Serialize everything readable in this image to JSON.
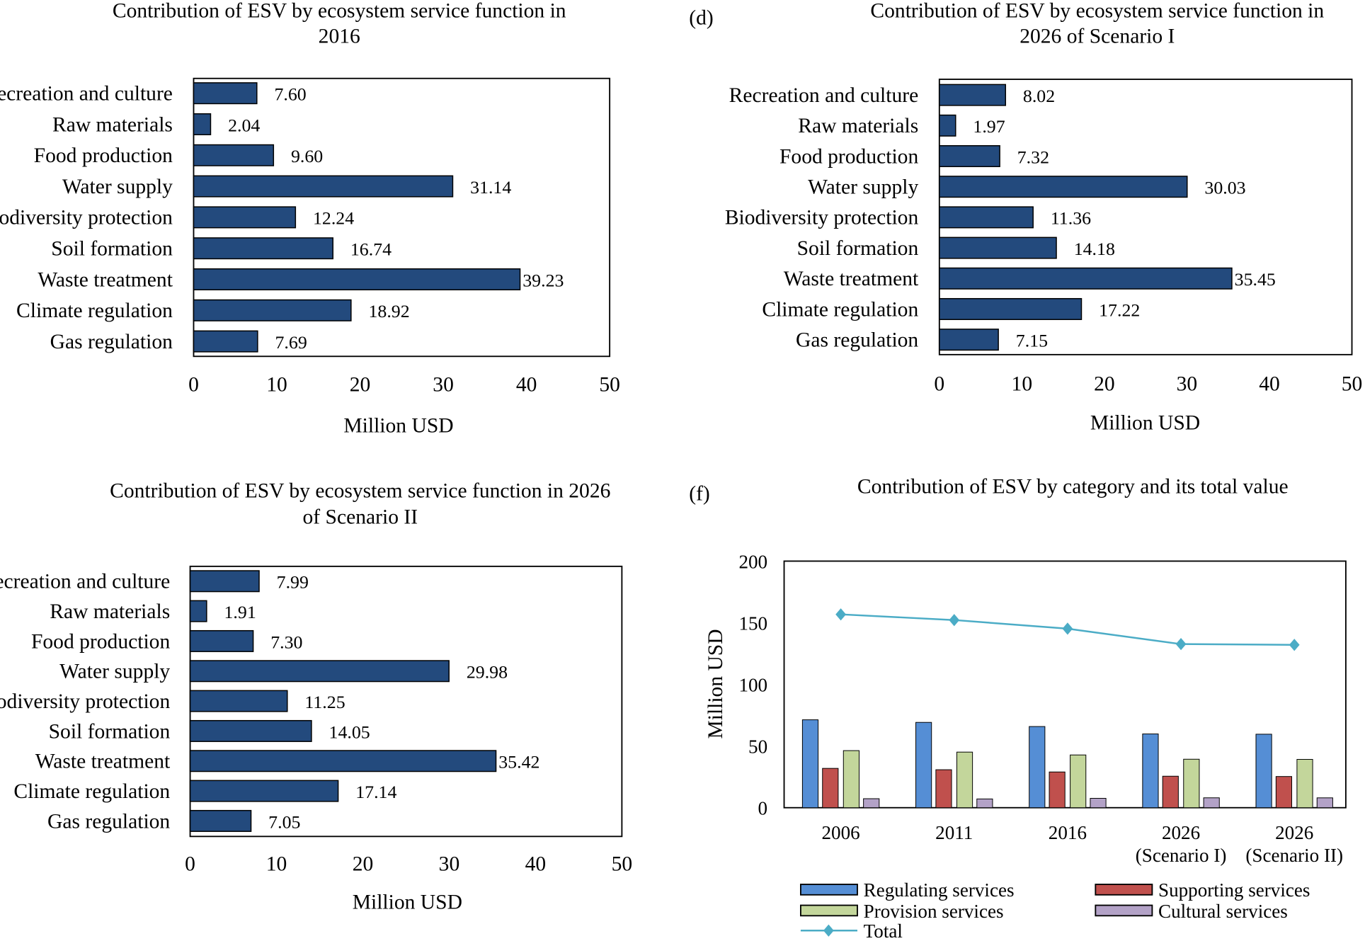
{
  "panel_labels": {
    "d": "(d)",
    "f": "(f)"
  },
  "chart_data": [
    {
      "type": "bar",
      "orientation": "horizontal",
      "title": [
        "Contribution of ESV by ecosystem service function in",
        "2016"
      ],
      "xlabel": "Million USD",
      "xlim": [
        0,
        50
      ],
      "xticks": [
        "0",
        "10",
        "20",
        "30",
        "40",
        "50"
      ],
      "categories": [
        "Recreation and culture",
        "Raw materials",
        "Food production",
        "Water supply",
        "Biodiversity protection",
        "Soil formation",
        "Waste treatment",
        "Climate regulation",
        "Gas regulation"
      ],
      "values": [
        7.6,
        2.04,
        9.6,
        31.14,
        12.24,
        16.74,
        39.23,
        18.92,
        7.69
      ],
      "value_labels": [
        "7.60",
        "2.04",
        "9.60",
        "31.14",
        "12.24",
        "16.74",
        "39.23",
        "18.92",
        "7.69"
      ],
      "bar_color": "#234a7d",
      "grid": false
    },
    {
      "type": "bar",
      "orientation": "horizontal",
      "title": [
        "Contribution of ESV by ecosystem service function in",
        "2026 of Scenario I"
      ],
      "xlabel": "Million USD",
      "xlim": [
        0,
        50
      ],
      "xticks": [
        "0",
        "10",
        "20",
        "30",
        "40",
        "50"
      ],
      "categories": [
        "Recreation and culture",
        "Raw materials",
        "Food production",
        "Water supply",
        "Biodiversity protection",
        "Soil formation",
        "Waste treatment",
        "Climate regulation",
        "Gas regulation"
      ],
      "values": [
        8.02,
        1.97,
        7.32,
        30.03,
        11.36,
        14.18,
        35.45,
        17.22,
        7.15
      ],
      "value_labels": [
        "8.02",
        "1.97",
        "7.32",
        "30.03",
        "11.36",
        "14.18",
        "35.45",
        "17.22",
        "7.15"
      ],
      "bar_color": "#234a7d",
      "grid": false
    },
    {
      "type": "bar",
      "orientation": "horizontal",
      "title": [
        "Contribution of ESV by ecosystem service function in 2026",
        "of Scenario II"
      ],
      "xlabel": "Million USD",
      "xlim": [
        0,
        50
      ],
      "xticks": [
        "0",
        "10",
        "20",
        "30",
        "40",
        "50"
      ],
      "categories": [
        "Recreation and culture",
        "Raw materials",
        "Food production",
        "Water supply",
        "Biodiversity protection",
        "Soil formation",
        "Waste treatment",
        "Climate regulation",
        "Gas regulation"
      ],
      "values": [
        7.99,
        1.91,
        7.3,
        29.98,
        11.25,
        14.05,
        35.42,
        17.14,
        7.05
      ],
      "value_labels": [
        "7.99",
        "1.91",
        "7.30",
        "29.98",
        "11.25",
        "14.05",
        "35.42",
        "17.14",
        "7.05"
      ],
      "bar_color": "#234a7d",
      "grid": false
    },
    {
      "type": "bar+line",
      "title": [
        "Contribution of ESV by category and its total value"
      ],
      "ylabel": "Million USD",
      "ylim": [
        0,
        200
      ],
      "yticks": [
        "0",
        "50",
        "100",
        "150",
        "200"
      ],
      "categories": [
        [
          "2006"
        ],
        [
          "2011"
        ],
        [
          "2016"
        ],
        [
          "2026",
          "(Scenario I)"
        ],
        [
          "2026",
          "(Scenario II)"
        ]
      ],
      "series": [
        {
          "name": "Regulating services",
          "type": "bar",
          "color": "#558ed5",
          "values": [
            71.3,
            69.2,
            65.84,
            59.82,
            59.61
          ]
        },
        {
          "name": "Supporting services",
          "type": "bar",
          "color": "#c0504d",
          "values": [
            31.9,
            30.8,
            28.98,
            25.54,
            25.3
          ]
        },
        {
          "name": "Provision services",
          "type": "bar",
          "color": "#c3d69b",
          "values": [
            46.3,
            45.1,
            42.78,
            39.32,
            39.19
          ]
        },
        {
          "name": "Cultural services",
          "type": "bar",
          "color": "#b3a2c7",
          "values": [
            7.3,
            7.1,
            7.6,
            8.02,
            7.99
          ]
        },
        {
          "name": "Total",
          "type": "line",
          "color": "#4bacc6",
          "marker": "diamond",
          "values": [
            156.8,
            152.2,
            145.2,
            132.7,
            132.09
          ]
        }
      ],
      "legend": "bottom",
      "grid": false
    }
  ]
}
